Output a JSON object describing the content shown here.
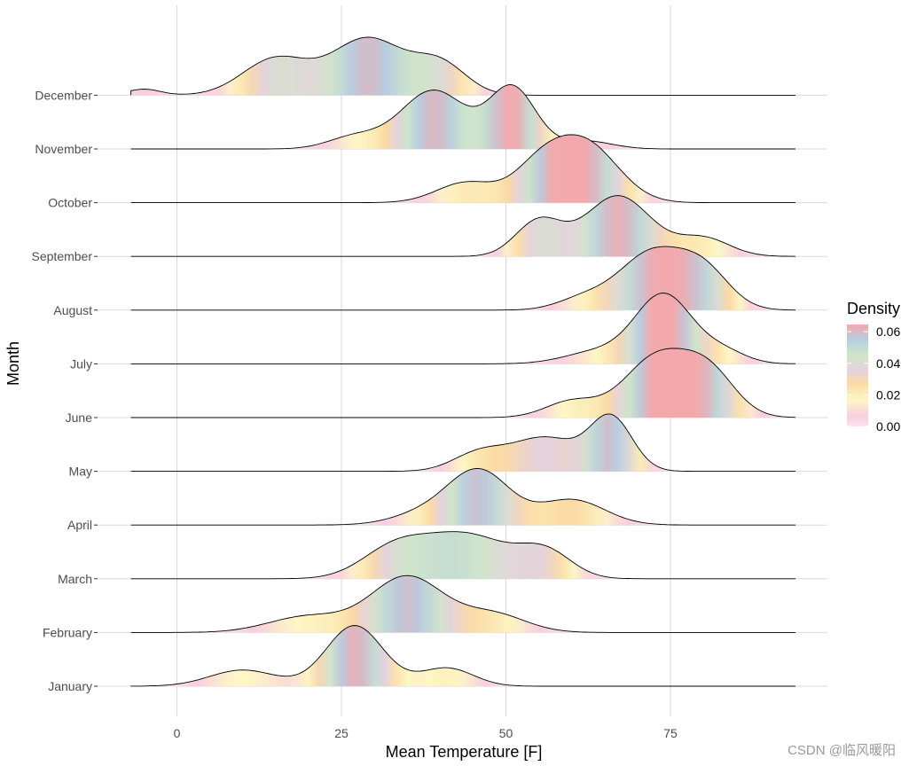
{
  "chart_data": {
    "type": "ridgeline",
    "xlabel": "Mean Temperature [F]",
    "ylabel": "Month",
    "xlim": [
      -14,
      99
    ],
    "x_ticks": [
      "0",
      "25",
      "50",
      "75"
    ],
    "grid": true,
    "legend": {
      "title": "Density",
      "position": "right",
      "labels": [
        "0.06",
        "0.04",
        "0.02",
        "0.00"
      ],
      "gradient_colors": [
        "#fbe3ee",
        "#f8cde0",
        "#fdf7c6",
        "#fbd9a3",
        "#cfe6c9",
        "#b7cde2",
        "#d8c8e0",
        "#f3a9ac"
      ]
    },
    "fill_stops": [
      {
        "d": 0.0,
        "color": "#fbe3ee"
      },
      {
        "d": 0.006,
        "color": "#f8cde0"
      },
      {
        "d": 0.016,
        "color": "#fdf7c6"
      },
      {
        "d": 0.026,
        "color": "#fbd9a3"
      },
      {
        "d": 0.034,
        "color": "#e5d2dc"
      },
      {
        "d": 0.043,
        "color": "#cfe6c9"
      },
      {
        "d": 0.053,
        "color": "#b7cde2"
      },
      {
        "d": 0.062,
        "color": "#f3a9ac"
      }
    ],
    "ridge_x_range": [
      -7,
      94
    ],
    "series": [
      {
        "name": "January",
        "peaks": [
          [
            10,
            5,
            0.016
          ],
          [
            27,
            4.3,
            0.06
          ],
          [
            41,
            4,
            0.018
          ]
        ]
      },
      {
        "name": "February",
        "peaks": [
          [
            20,
            6,
            0.016
          ],
          [
            35,
            5.5,
            0.055
          ],
          [
            48,
            5,
            0.018
          ]
        ]
      },
      {
        "name": "March",
        "peaks": [
          [
            33,
            5,
            0.028
          ],
          [
            44,
            6.5,
            0.043
          ],
          [
            56,
            4,
            0.025
          ]
        ]
      },
      {
        "name": "April",
        "peaks": [
          [
            38,
            5,
            0.012
          ],
          [
            46,
            4.6,
            0.052
          ],
          [
            60,
            5,
            0.025
          ]
        ]
      },
      {
        "name": "May",
        "peaks": [
          [
            46,
            4,
            0.018
          ],
          [
            56,
            5,
            0.033
          ],
          [
            66,
            3.2,
            0.052
          ]
        ]
      },
      {
        "name": "June",
        "peaks": [
          [
            60,
            4,
            0.016
          ],
          [
            73,
            5,
            0.06
          ],
          [
            81,
            4,
            0.04
          ]
        ]
      },
      {
        "name": "July",
        "peaks": [
          [
            64,
            5,
            0.012
          ],
          [
            74,
            4.3,
            0.068
          ],
          [
            83,
            3.5,
            0.012
          ]
        ]
      },
      {
        "name": "August",
        "peaks": [
          [
            62,
            4,
            0.012
          ],
          [
            72,
            4.8,
            0.055
          ],
          [
            80,
            4,
            0.038
          ]
        ]
      },
      {
        "name": "September",
        "peaks": [
          [
            55,
            3.5,
            0.035
          ],
          [
            67,
            5,
            0.06
          ],
          [
            80,
            4,
            0.018
          ]
        ]
      },
      {
        "name": "October",
        "peaks": [
          [
            44,
            4.5,
            0.02
          ],
          [
            55,
            4,
            0.03
          ],
          [
            62,
            5,
            0.058
          ]
        ]
      },
      {
        "name": "November",
        "peaks": [
          [
            27,
            4,
            0.012
          ],
          [
            39,
            5,
            0.058
          ],
          [
            51,
            3.5,
            0.06
          ],
          [
            62,
            4,
            0.008
          ]
        ]
      },
      {
        "name": "December",
        "peaks": [
          [
            -5,
            2.5,
            0.006
          ],
          [
            15,
            5,
            0.036
          ],
          [
            29,
            5.5,
            0.056
          ],
          [
            40,
            4,
            0.03
          ]
        ]
      }
    ]
  },
  "watermark": "CSDN @临风暖阳"
}
